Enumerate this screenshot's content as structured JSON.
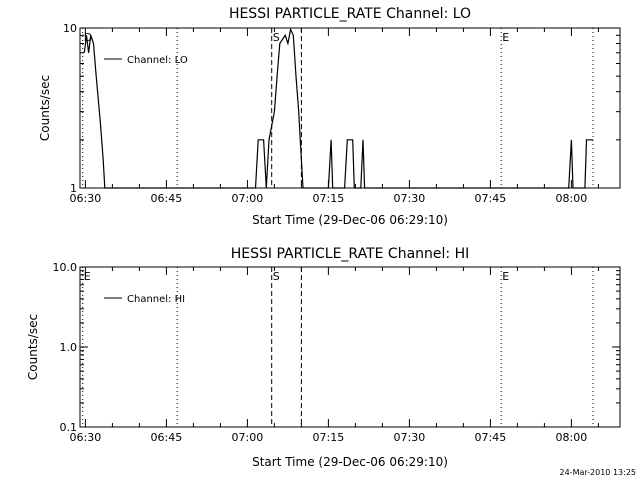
{
  "footer": "24-Mar-2010 13:25",
  "chart_data": [
    {
      "type": "line",
      "title": "HESSI PARTICLE_RATE Channel: LO",
      "xlabel": "Start Time (29-Dec-06 06:29:10)",
      "ylabel": "Counts/sec",
      "yscale": "log",
      "ylim": [
        1,
        10
      ],
      "xlim_minutes_from_0630": [
        -1,
        99
      ],
      "xticks": [
        "06:30",
        "06:45",
        "07:00",
        "07:15",
        "07:30",
        "07:45",
        "08:00"
      ],
      "yticks": [
        "1",
        "10"
      ],
      "legend": "Channel: LO",
      "legend_position": "top-left",
      "markers": [
        {
          "label": "D",
          "minute": -0.5,
          "style": "dotted"
        },
        {
          "label": "S",
          "minute": 34.5,
          "style": "dashed"
        },
        {
          "label": "",
          "minute": 40,
          "style": "dashed"
        },
        {
          "label": "",
          "minute": 17,
          "style": "dotted"
        },
        {
          "label": "E",
          "minute": 77,
          "style": "dotted"
        },
        {
          "label": "",
          "minute": 94,
          "style": "dotted"
        }
      ],
      "series": [
        {
          "name": "Channel: LO",
          "values": [
            {
              "minute": -0.2,
              "value": 7
            },
            {
              "minute": 0.2,
              "value": 9
            },
            {
              "minute": 0.6,
              "value": 7
            },
            {
              "minute": 1,
              "value": 9
            },
            {
              "minute": 1.5,
              "value": 8
            },
            {
              "minute": 2,
              "value": 5
            },
            {
              "minute": 2.8,
              "value": 2.5
            },
            {
              "minute": 3.3,
              "value": 1.5
            },
            {
              "minute": 3.6,
              "value": 1
            },
            {
              "minute": 31.5,
              "value": 1
            },
            {
              "minute": 32,
              "value": 2
            },
            {
              "minute": 33,
              "value": 2
            },
            {
              "minute": 33.5,
              "value": 1
            },
            {
              "minute": 34,
              "value": 2
            },
            {
              "minute": 35,
              "value": 3
            },
            {
              "minute": 35.5,
              "value": 5
            },
            {
              "minute": 36,
              "value": 8
            },
            {
              "minute": 37,
              "value": 9
            },
            {
              "minute": 37.5,
              "value": 8
            },
            {
              "minute": 38,
              "value": 9.8
            },
            {
              "minute": 38.5,
              "value": 9
            },
            {
              "minute": 39,
              "value": 5
            },
            {
              "minute": 39.5,
              "value": 3
            },
            {
              "minute": 40,
              "value": 1.5
            },
            {
              "minute": 40.3,
              "value": 1
            },
            {
              "minute": 45,
              "value": 1
            },
            {
              "minute": 45.5,
              "value": 2
            },
            {
              "minute": 45.8,
              "value": 1
            },
            {
              "minute": 48,
              "value": 1
            },
            {
              "minute": 48.5,
              "value": 2
            },
            {
              "minute": 49.5,
              "value": 2
            },
            {
              "minute": 49.8,
              "value": 1
            },
            {
              "minute": 51,
              "value": 1
            },
            {
              "minute": 51.4,
              "value": 2
            },
            {
              "minute": 51.7,
              "value": 1
            },
            {
              "minute": 89.5,
              "value": 1
            },
            {
              "minute": 90,
              "value": 2
            },
            {
              "minute": 90.3,
              "value": 1
            },
            {
              "minute": 92.5,
              "value": 1
            },
            {
              "minute": 92.8,
              "value": 2
            },
            {
              "minute": 94,
              "value": 2
            }
          ]
        }
      ]
    },
    {
      "type": "line",
      "title": "HESSI PARTICLE_RATE Channel: HI",
      "xlabel": "Start Time (29-Dec-06 06:29:10)",
      "ylabel": "Counts/sec",
      "yscale": "log",
      "ylim": [
        0.1,
        10
      ],
      "xlim_minutes_from_0630": [
        -1,
        99
      ],
      "xticks": [
        "06:30",
        "06:45",
        "07:00",
        "07:15",
        "07:30",
        "07:45",
        "08:00"
      ],
      "yticks": [
        "0.1",
        "1.0",
        "10.0"
      ],
      "legend": "Channel: HI",
      "legend_position": "top-left",
      "markers": [
        {
          "label": "E",
          "minute": -0.5,
          "style": "dotted"
        },
        {
          "label": "S",
          "minute": 34.5,
          "style": "dashed"
        },
        {
          "label": "",
          "minute": 40,
          "style": "dashed"
        },
        {
          "label": "",
          "minute": 17,
          "style": "dotted"
        },
        {
          "label": "E",
          "minute": 77,
          "style": "dotted"
        },
        {
          "label": "",
          "minute": 94,
          "style": "dotted"
        }
      ],
      "series": [
        {
          "name": "Channel: HI",
          "values": []
        }
      ]
    }
  ]
}
